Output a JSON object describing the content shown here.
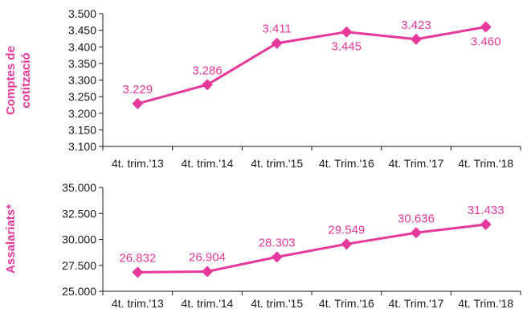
{
  "chart_data": [
    {
      "type": "line",
      "ylabel_lines": [
        "Comptes de",
        "cotització"
      ],
      "categories": [
        "4t. trim.'13",
        "4t. trim.'14",
        "4t. trim.'15",
        "4t. Trim.'16",
        "4t. Trim.'17",
        "4t. Trim.'18"
      ],
      "series": [
        {
          "values": [
            3229,
            3286,
            3411,
            3445,
            3423,
            3460
          ],
          "labels": [
            "3.229",
            "3.286",
            "3.411",
            "3.445",
            "3.423",
            "3.460"
          ]
        }
      ],
      "ylim": [
        3100,
        3500
      ],
      "yticks": [
        3100,
        3150,
        3200,
        3250,
        3300,
        3350,
        3400,
        3450,
        3500
      ],
      "ytick_labels": [
        "3.100",
        "3.150",
        "3.200",
        "3.250",
        "3.300",
        "3.350",
        "3.400",
        "3.450",
        "3.500"
      ],
      "grid": false,
      "color": "#e6399b"
    },
    {
      "type": "line",
      "ylabel_lines": [
        "Assalariats*"
      ],
      "categories": [
        "4t. trim.'13",
        "4t. trim.'14",
        "4t. trim.'15",
        "4t. Trim.'16",
        "4t. Trim.'17",
        "4t. Trim.'18"
      ],
      "series": [
        {
          "values": [
            26832,
            26904,
            28303,
            29549,
            30636,
            31433
          ],
          "labels": [
            "26.832",
            "26.904",
            "28.303",
            "29.549",
            "30.636",
            "31.433"
          ]
        }
      ],
      "ylim": [
        25000,
        35000
      ],
      "yticks": [
        25000,
        27500,
        30000,
        32500,
        35000
      ],
      "ytick_labels": [
        "25.000",
        "27.500",
        "30.000",
        "32.500",
        "35.000"
      ],
      "grid": false,
      "color": "#e6399b"
    }
  ]
}
